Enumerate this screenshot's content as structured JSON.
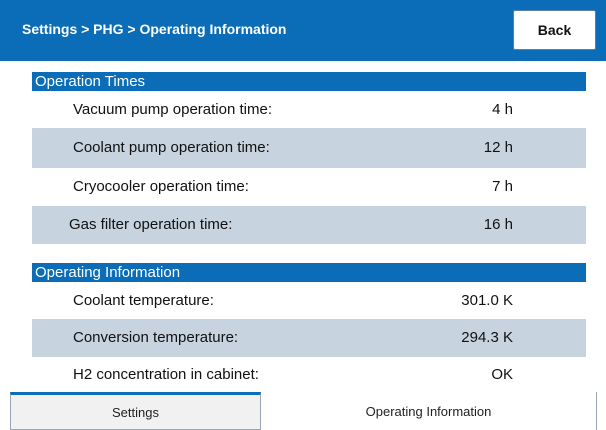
{
  "header": {
    "title": "Settings > PHG > Operating Information",
    "back": "Back"
  },
  "sections": [
    {
      "title": "Operation Times",
      "rows": [
        {
          "label": "Vacuum pump operation time:",
          "value": "4 h"
        },
        {
          "label": "Coolant pump operation time:",
          "value": "12 h"
        },
        {
          "label": "Cryocooler operation time:",
          "value": "7 h"
        },
        {
          "label": "Gas filter operation time:",
          "value": "16 h"
        }
      ]
    },
    {
      "title": "Operating Information",
      "rows": [
        {
          "label": "Coolant temperature:",
          "value": "301.0 K"
        },
        {
          "label": "Conversion temperature:",
          "value": "294.3 K"
        },
        {
          "label": "H2 concentration in cabinet:",
          "value": "OK"
        }
      ]
    }
  ],
  "tabs": [
    "Settings",
    "Operating Information"
  ]
}
